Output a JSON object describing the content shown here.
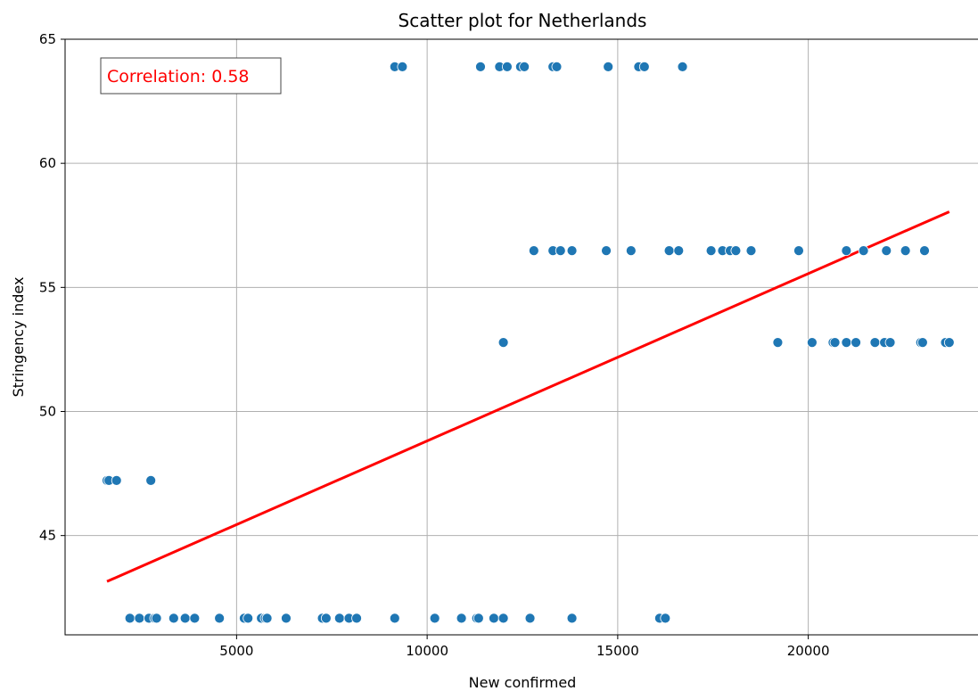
{
  "chart_data": {
    "type": "scatter",
    "title": "Scatter plot for Netherlands",
    "xlabel": "New confirmed",
    "ylabel": "Stringency index",
    "xlim": [
      500,
      24500
    ],
    "ylim": [
      41,
      65
    ],
    "xticks": [
      5000,
      10000,
      15000,
      20000
    ],
    "yticks": [
      45,
      50,
      55,
      60,
      65
    ],
    "grid": true,
    "point_color": "#1f77b4",
    "annotation": "Correlation: 0.58",
    "annotation_color": "#ff0000",
    "trendline": {
      "color": "#ff0000",
      "x": [
        1600,
        23700
      ],
      "y": [
        43.15,
        58.05
      ]
    },
    "points": [
      {
        "x": 1600,
        "y": 47.22
      },
      {
        "x": 1650,
        "y": 47.22
      },
      {
        "x": 1850,
        "y": 47.22
      },
      {
        "x": 2750,
        "y": 47.22
      },
      {
        "x": 9150,
        "y": 63.89
      },
      {
        "x": 9350,
        "y": 63.89
      },
      {
        "x": 11400,
        "y": 63.89
      },
      {
        "x": 11900,
        "y": 63.89
      },
      {
        "x": 12100,
        "y": 63.89
      },
      {
        "x": 12450,
        "y": 63.89
      },
      {
        "x": 12550,
        "y": 63.89
      },
      {
        "x": 13300,
        "y": 63.89
      },
      {
        "x": 13400,
        "y": 63.89
      },
      {
        "x": 14750,
        "y": 63.89
      },
      {
        "x": 15550,
        "y": 63.89
      },
      {
        "x": 15700,
        "y": 63.89
      },
      {
        "x": 16700,
        "y": 63.89
      },
      {
        "x": 12800,
        "y": 56.48
      },
      {
        "x": 13300,
        "y": 56.48
      },
      {
        "x": 13500,
        "y": 56.48
      },
      {
        "x": 13800,
        "y": 56.48
      },
      {
        "x": 14700,
        "y": 56.48
      },
      {
        "x": 15350,
        "y": 56.48
      },
      {
        "x": 16350,
        "y": 56.48
      },
      {
        "x": 16600,
        "y": 56.48
      },
      {
        "x": 17450,
        "y": 56.48
      },
      {
        "x": 17750,
        "y": 56.48
      },
      {
        "x": 17950,
        "y": 56.48
      },
      {
        "x": 18100,
        "y": 56.48
      },
      {
        "x": 18500,
        "y": 56.48
      },
      {
        "x": 19750,
        "y": 56.48
      },
      {
        "x": 21000,
        "y": 56.48
      },
      {
        "x": 21450,
        "y": 56.48
      },
      {
        "x": 22050,
        "y": 56.48
      },
      {
        "x": 22550,
        "y": 56.48
      },
      {
        "x": 23050,
        "y": 56.48
      },
      {
        "x": 12000,
        "y": 52.78
      },
      {
        "x": 19200,
        "y": 52.78
      },
      {
        "x": 20100,
        "y": 52.78
      },
      {
        "x": 20650,
        "y": 52.78
      },
      {
        "x": 20700,
        "y": 52.78
      },
      {
        "x": 21000,
        "y": 52.78
      },
      {
        "x": 21250,
        "y": 52.78
      },
      {
        "x": 21750,
        "y": 52.78
      },
      {
        "x": 22000,
        "y": 52.78
      },
      {
        "x": 22150,
        "y": 52.78
      },
      {
        "x": 22950,
        "y": 52.78
      },
      {
        "x": 23000,
        "y": 52.78
      },
      {
        "x": 23600,
        "y": 52.78
      },
      {
        "x": 23700,
        "y": 52.78
      },
      {
        "x": 2200,
        "y": 41.67
      },
      {
        "x": 2450,
        "y": 41.67
      },
      {
        "x": 2700,
        "y": 41.67
      },
      {
        "x": 2850,
        "y": 41.67
      },
      {
        "x": 2900,
        "y": 41.67
      },
      {
        "x": 3350,
        "y": 41.67
      },
      {
        "x": 3650,
        "y": 41.67
      },
      {
        "x": 3900,
        "y": 41.67
      },
      {
        "x": 4550,
        "y": 41.67
      },
      {
        "x": 5200,
        "y": 41.67
      },
      {
        "x": 5300,
        "y": 41.67
      },
      {
        "x": 5650,
        "y": 41.67
      },
      {
        "x": 5750,
        "y": 41.67
      },
      {
        "x": 5800,
        "y": 41.67
      },
      {
        "x": 6300,
        "y": 41.67
      },
      {
        "x": 7250,
        "y": 41.67
      },
      {
        "x": 7350,
        "y": 41.67
      },
      {
        "x": 7700,
        "y": 41.67
      },
      {
        "x": 7950,
        "y": 41.67
      },
      {
        "x": 8150,
        "y": 41.67
      },
      {
        "x": 9150,
        "y": 41.67
      },
      {
        "x": 10200,
        "y": 41.67
      },
      {
        "x": 10900,
        "y": 41.67
      },
      {
        "x": 11300,
        "y": 41.67
      },
      {
        "x": 11350,
        "y": 41.67
      },
      {
        "x": 11750,
        "y": 41.67
      },
      {
        "x": 12000,
        "y": 41.67
      },
      {
        "x": 12700,
        "y": 41.67
      },
      {
        "x": 13800,
        "y": 41.67
      },
      {
        "x": 16100,
        "y": 41.67
      },
      {
        "x": 16250,
        "y": 41.67
      }
    ]
  }
}
